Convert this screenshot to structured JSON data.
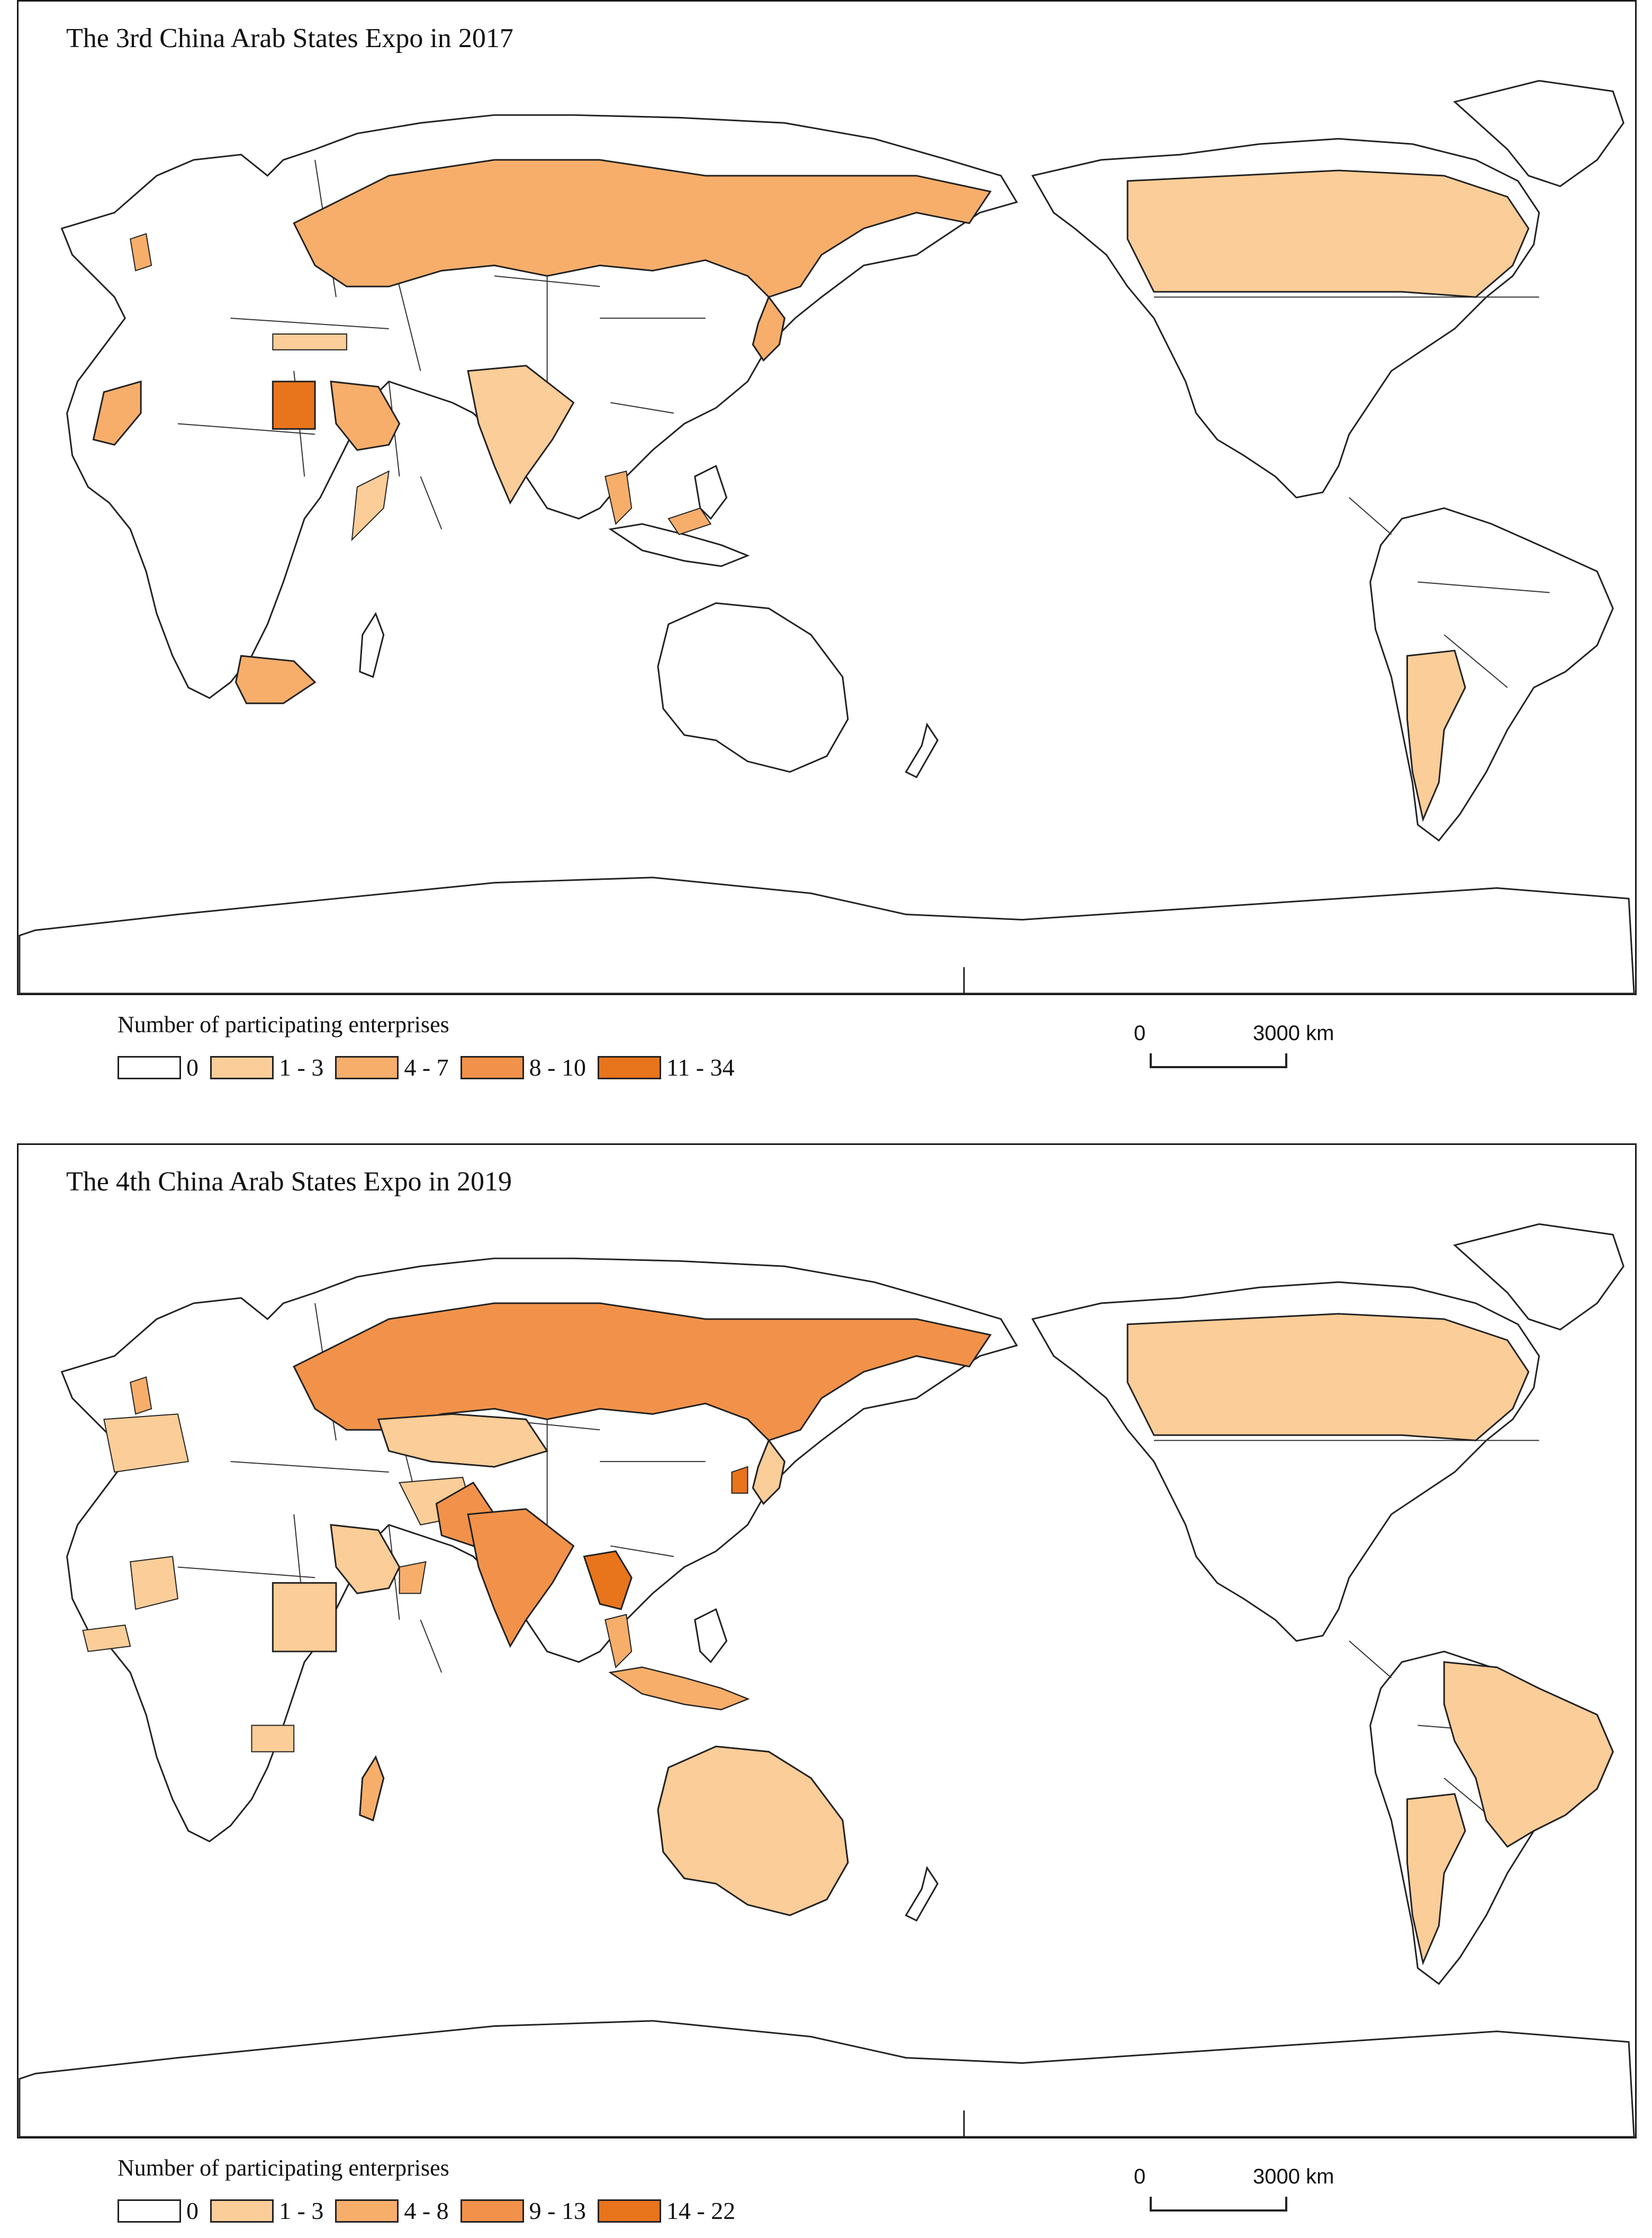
{
  "maps": [
    {
      "title": "The 3rd China Arab States Expo in 2017",
      "legend_title": "Number of participating enterprises",
      "legend": [
        {
          "label": "0",
          "color": "#ffffff"
        },
        {
          "label": "1 - 3",
          "color": "#fbcd98"
        },
        {
          "label": "4 - 7",
          "color": "#f7ae6b"
        },
        {
          "label": "8 - 10",
          "color": "#f2924a"
        },
        {
          "label": "11 - 34",
          "color": "#e8741c"
        }
      ],
      "scale": {
        "zero": "0",
        "distance": "3000 km"
      },
      "highlighted_regions": [
        {
          "region": "Russia",
          "class": "4 - 7"
        },
        {
          "region": "Canada",
          "class": "1 - 3"
        },
        {
          "region": "Egypt",
          "class": "11 - 34"
        },
        {
          "region": "Saudi Arabia",
          "class": "4 - 7"
        },
        {
          "region": "India",
          "class": "1 - 3"
        },
        {
          "region": "Argentina",
          "class": "1 - 3"
        },
        {
          "region": "South Africa",
          "class": "4 - 7"
        },
        {
          "region": "Morocco",
          "class": "4 - 7"
        }
      ]
    },
    {
      "title": "The 4th China Arab States Expo in 2019",
      "legend_title": "Number of participating enterprises",
      "legend": [
        {
          "label": "0",
          "color": "#ffffff"
        },
        {
          "label": "1 - 3",
          "color": "#fbcd98"
        },
        {
          "label": "4 - 8",
          "color": "#f7ae6b"
        },
        {
          "label": "9 - 13",
          "color": "#f2924a"
        },
        {
          "label": "14 - 22",
          "color": "#e8741c"
        }
      ],
      "scale": {
        "zero": "0",
        "distance": "3000 km"
      },
      "highlighted_regions": [
        {
          "region": "Russia",
          "class": "9 - 13"
        },
        {
          "region": "Canada",
          "class": "1 - 3"
        },
        {
          "region": "Kazakhstan",
          "class": "1 - 3"
        },
        {
          "region": "India",
          "class": "9 - 13"
        },
        {
          "region": "Pakistan",
          "class": "9 - 13"
        },
        {
          "region": "Thailand",
          "class": "14 - 22"
        },
        {
          "region": "Australia",
          "class": "1 - 3"
        },
        {
          "region": "Brazil",
          "class": "1 - 3"
        },
        {
          "region": "Argentina",
          "class": "1 - 3"
        },
        {
          "region": "Saudi Arabia",
          "class": "1 - 3"
        }
      ]
    }
  ]
}
